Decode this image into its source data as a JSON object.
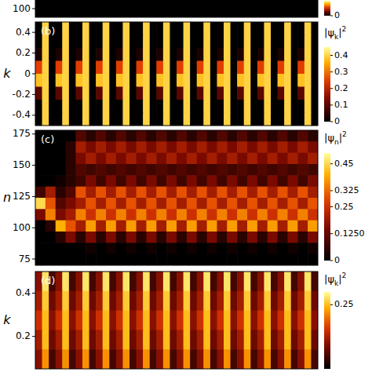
{
  "chart_data": [
    {
      "type": "heatmap",
      "ylim": [
        90,
        110
      ],
      "yticks": [
        100
      ],
      "tick_labels": "y",
      "cells": [
        [
          0
        ]
      ],
      "colorbar": {
        "lim": [
          0,
          0.1
        ],
        "ticks": [
          0
        ]
      }
    },
    {
      "type": "heatmap",
      "label": "(b)",
      "y_label": "k",
      "ylim": [
        -0.5,
        0.5
      ],
      "yticks": [
        -0.4,
        -0.2,
        0,
        0.2,
        0.4
      ],
      "tick_labels": "y",
      "cells": [
        [
          0,
          0.4,
          0,
          0,
          0.4,
          0,
          0,
          0.4,
          0,
          0,
          0.4,
          0,
          0,
          0.4,
          0,
          0,
          0.4,
          0,
          0,
          0.4,
          0,
          0,
          0.4,
          0,
          0,
          0.4,
          0,
          0,
          0.4,
          0,
          0,
          0.4,
          0,
          0,
          0.4,
          0,
          0,
          0.4,
          0,
          0,
          0.4,
          0
        ],
        [
          0,
          0.4,
          0,
          0,
          0.4,
          0,
          0,
          0.4,
          0,
          0,
          0.4,
          0,
          0,
          0.4,
          0,
          0,
          0.4,
          0,
          0,
          0.4,
          0,
          0,
          0.4,
          0,
          0,
          0.4,
          0,
          0,
          0.4,
          0,
          0,
          0.4,
          0,
          0,
          0.4,
          0,
          0,
          0.4,
          0,
          0,
          0.4,
          0
        ],
        [
          0.03,
          0.4,
          0,
          0.03,
          0.4,
          0,
          0.03,
          0.4,
          0,
          0.03,
          0.4,
          0,
          0.03,
          0.4,
          0,
          0.03,
          0.4,
          0,
          0.03,
          0.4,
          0,
          0.03,
          0.4,
          0,
          0.03,
          0.4,
          0,
          0.03,
          0.4,
          0,
          0.03,
          0.4,
          0,
          0.03,
          0.4,
          0,
          0.03,
          0.4,
          0,
          0.03,
          0.4,
          0
        ],
        [
          0.25,
          0.4,
          0,
          0.25,
          0.4,
          0,
          0.25,
          0.4,
          0,
          0.25,
          0.4,
          0,
          0.25,
          0.4,
          0,
          0.25,
          0.4,
          0,
          0.25,
          0.4,
          0,
          0.25,
          0.4,
          0,
          0.25,
          0.4,
          0,
          0.25,
          0.4,
          0,
          0.25,
          0.4,
          0,
          0.25,
          0.4,
          0,
          0.25,
          0.4,
          0,
          0.25,
          0.4,
          0
        ],
        [
          0.38,
          0.4,
          0,
          0.38,
          0.4,
          0,
          0.38,
          0.4,
          0,
          0.38,
          0.4,
          0,
          0.38,
          0.4,
          0,
          0.38,
          0.4,
          0,
          0.38,
          0.4,
          0,
          0.38,
          0.4,
          0,
          0.38,
          0.4,
          0,
          0.38,
          0.4,
          0,
          0.38,
          0.4,
          0,
          0.38,
          0.4,
          0,
          0.38,
          0.4,
          0,
          0.38,
          0.4,
          0
        ],
        [
          0.1,
          0.4,
          0,
          0.1,
          0.4,
          0,
          0.1,
          0.4,
          0,
          0.1,
          0.4,
          0,
          0.1,
          0.4,
          0,
          0.1,
          0.4,
          0,
          0.1,
          0.4,
          0,
          0.1,
          0.4,
          0,
          0.1,
          0.4,
          0,
          0.1,
          0.4,
          0,
          0.1,
          0.4,
          0,
          0.1,
          0.4,
          0,
          0.1,
          0.4,
          0,
          0.1,
          0.4,
          0
        ],
        [
          0,
          0.4,
          0,
          0,
          0.4,
          0,
          0,
          0.4,
          0,
          0,
          0.4,
          0,
          0,
          0.4,
          0,
          0,
          0.4,
          0,
          0,
          0.4,
          0,
          0,
          0.4,
          0,
          0,
          0.4,
          0,
          0,
          0.4,
          0,
          0,
          0.4,
          0,
          0,
          0.4,
          0,
          0,
          0.4,
          0,
          0,
          0.4,
          0
        ],
        [
          0,
          0.4,
          0,
          0,
          0.4,
          0,
          0,
          0.4,
          0,
          0,
          0.4,
          0,
          0,
          0.4,
          0,
          0,
          0.4,
          0,
          0,
          0.4,
          0,
          0,
          0.4,
          0,
          0,
          0.4,
          0,
          0,
          0.4,
          0,
          0,
          0.4,
          0,
          0,
          0.4,
          0,
          0,
          0.4,
          0,
          0,
          0.4,
          0
        ]
      ],
      "colorbar": {
        "title": {
          "text": "|ψ",
          "sub": "k",
          "after": "|",
          "sup": "2"
        },
        "lim": [
          0,
          0.45
        ],
        "ticks": [
          0,
          0.1,
          0.2,
          0.3,
          0.4
        ]
      }
    },
    {
      "type": "heatmap",
      "label": "(c)",
      "y_label": "n",
      "ylim": [
        70,
        178
      ],
      "yticks": [
        75,
        100,
        125,
        150,
        175
      ],
      "tick_labels": "y",
      "cells": [
        [
          0,
          0,
          0,
          0,
          0.1,
          0.05,
          0.1,
          0.05,
          0.1,
          0.05,
          0.1,
          0.05,
          0.1,
          0.05,
          0.1,
          0.05,
          0.1,
          0.05,
          0.1,
          0.05,
          0.1,
          0.05,
          0.1,
          0.05,
          0.1,
          0.05,
          0.1,
          0.05
        ],
        [
          0,
          0,
          0,
          0.05,
          0.2,
          0.15,
          0.2,
          0.15,
          0.2,
          0.15,
          0.2,
          0.15,
          0.2,
          0.15,
          0.2,
          0.15,
          0.2,
          0.15,
          0.2,
          0.15,
          0.2,
          0.15,
          0.2,
          0.15,
          0.2,
          0.15,
          0.2,
          0.15
        ],
        [
          0,
          0,
          0,
          0.05,
          0.15,
          0.2,
          0.15,
          0.2,
          0.15,
          0.2,
          0.15,
          0.2,
          0.15,
          0.2,
          0.15,
          0.2,
          0.15,
          0.2,
          0.15,
          0.2,
          0.15,
          0.2,
          0.15,
          0.2,
          0.15,
          0.2,
          0.15,
          0.2
        ],
        [
          0,
          0,
          0,
          0.05,
          0.1,
          0.08,
          0.1,
          0.08,
          0.1,
          0.08,
          0.1,
          0.08,
          0.1,
          0.08,
          0.1,
          0.08,
          0.1,
          0.08,
          0.1,
          0.08,
          0.1,
          0.08,
          0.1,
          0.08,
          0.1,
          0.08,
          0.1,
          0.08
        ],
        [
          0,
          0,
          0.02,
          0.05,
          0.08,
          0.15,
          0.08,
          0.15,
          0.08,
          0.15,
          0.08,
          0.15,
          0.08,
          0.15,
          0.08,
          0.15,
          0.08,
          0.15,
          0.08,
          0.15,
          0.08,
          0.15,
          0.08,
          0.15,
          0.08,
          0.15,
          0.08,
          0.15
        ],
        [
          0.08,
          0.2,
          0.05,
          0.1,
          0.3,
          0.2,
          0.3,
          0.2,
          0.3,
          0.2,
          0.3,
          0.2,
          0.3,
          0.2,
          0.3,
          0.2,
          0.3,
          0.2,
          0.3,
          0.2,
          0.3,
          0.2,
          0.3,
          0.2,
          0.3,
          0.2,
          0.3,
          0.2
        ],
        [
          0.45,
          0.3,
          0.1,
          0.15,
          0.2,
          0.3,
          0.2,
          0.3,
          0.2,
          0.3,
          0.2,
          0.3,
          0.2,
          0.3,
          0.2,
          0.3,
          0.2,
          0.3,
          0.2,
          0.3,
          0.2,
          0.3,
          0.2,
          0.3,
          0.2,
          0.3,
          0.2,
          0.3
        ],
        [
          0.15,
          0.35,
          0.15,
          0.2,
          0.35,
          0.25,
          0.35,
          0.25,
          0.35,
          0.25,
          0.35,
          0.25,
          0.35,
          0.25,
          0.35,
          0.25,
          0.35,
          0.25,
          0.35,
          0.25,
          0.35,
          0.25,
          0.35,
          0.25,
          0.35,
          0.25,
          0.35,
          0.25
        ],
        [
          0,
          0.05,
          0.4,
          0.3,
          0.2,
          0.38,
          0.2,
          0.38,
          0.2,
          0.38,
          0.2,
          0.38,
          0.2,
          0.38,
          0.2,
          0.38,
          0.2,
          0.38,
          0.2,
          0.38,
          0.2,
          0.38,
          0.2,
          0.38,
          0.2,
          0.38,
          0.2,
          0.38
        ],
        [
          0,
          0,
          0.05,
          0.15,
          0.05,
          0.15,
          0.05,
          0.15,
          0.05,
          0.15,
          0.05,
          0.15,
          0.05,
          0.15,
          0.05,
          0.15,
          0.05,
          0.15,
          0.05,
          0.15,
          0.05,
          0.15,
          0.05,
          0.15,
          0.05,
          0.15,
          0.05,
          0.15
        ],
        [
          0,
          0,
          0,
          0,
          0,
          0.02,
          0,
          0.02,
          0,
          0.02,
          0,
          0.02,
          0,
          0.02,
          0,
          0.02,
          0,
          0.02,
          0,
          0.02,
          0,
          0.02,
          0,
          0.02,
          0,
          0.02,
          0,
          0.02
        ],
        [
          0,
          0,
          0,
          0,
          0,
          0,
          0,
          0,
          0,
          0,
          0,
          0,
          0,
          0,
          0,
          0,
          0,
          0,
          0,
          0,
          0,
          0,
          0,
          0,
          0,
          0,
          0,
          0
        ]
      ],
      "colorbar": {
        "title": {
          "text": "|ψ",
          "sub": "n",
          "after": "|",
          "sup": "2"
        },
        "lim": [
          0,
          0.5
        ],
        "ticks": [
          0,
          {
            "value": 0.125,
            "label": "0.1250"
          },
          0.25,
          0.325,
          0.45
        ]
      }
    },
    {
      "type": "heatmap",
      "label": "(d)",
      "y_label": "k",
      "ylim": [
        0.05,
        0.5
      ],
      "yticks": [
        0.2,
        0.4
      ],
      "tick_labels": "y",
      "cells": [
        [
          0.1,
          0.28,
          0.05,
          0.1,
          0.28,
          0.05,
          0.1,
          0.28,
          0.05,
          0.1,
          0.28,
          0.05,
          0.1,
          0.28,
          0.05,
          0.1,
          0.28,
          0.05,
          0.1,
          0.28,
          0.05,
          0.1,
          0.28,
          0.05,
          0.1,
          0.28,
          0.05,
          0.1,
          0.28,
          0.05,
          0.1,
          0.28,
          0.05,
          0.1,
          0.28,
          0.05,
          0.1,
          0.28,
          0.05,
          0.1,
          0.28,
          0.05
        ],
        [
          0.12,
          0.26,
          0.08,
          0.12,
          0.26,
          0.08,
          0.12,
          0.26,
          0.08,
          0.12,
          0.26,
          0.08,
          0.12,
          0.26,
          0.08,
          0.12,
          0.26,
          0.08,
          0.12,
          0.26,
          0.08,
          0.12,
          0.26,
          0.08,
          0.12,
          0.26,
          0.08,
          0.12,
          0.26,
          0.08,
          0.12,
          0.26,
          0.08,
          0.12,
          0.26,
          0.08,
          0.12,
          0.26,
          0.08,
          0.12,
          0.26,
          0.08
        ],
        [
          0.15,
          0.25,
          0.1,
          0.15,
          0.25,
          0.1,
          0.15,
          0.25,
          0.1,
          0.15,
          0.25,
          0.1,
          0.15,
          0.25,
          0.1,
          0.15,
          0.25,
          0.1,
          0.15,
          0.25,
          0.1,
          0.15,
          0.25,
          0.1,
          0.15,
          0.25,
          0.1,
          0.15,
          0.25,
          0.1,
          0.15,
          0.25,
          0.1,
          0.15,
          0.25,
          0.1,
          0.15,
          0.25,
          0.1,
          0.15,
          0.25,
          0.1
        ],
        [
          0.12,
          0.25,
          0.08,
          0.12,
          0.25,
          0.08,
          0.12,
          0.25,
          0.08,
          0.12,
          0.25,
          0.08,
          0.12,
          0.25,
          0.08,
          0.12,
          0.25,
          0.08,
          0.12,
          0.25,
          0.08,
          0.12,
          0.25,
          0.08,
          0.12,
          0.25,
          0.08,
          0.12,
          0.25,
          0.08,
          0.12,
          0.25,
          0.08,
          0.12,
          0.25,
          0.08,
          0.12,
          0.25,
          0.08,
          0.12,
          0.25,
          0.08
        ],
        [
          0.1,
          0.22,
          0.05,
          0.1,
          0.22,
          0.05,
          0.1,
          0.22,
          0.05,
          0.1,
          0.22,
          0.05,
          0.1,
          0.22,
          0.05,
          0.1,
          0.22,
          0.05,
          0.1,
          0.22,
          0.05,
          0.1,
          0.22,
          0.05,
          0.1,
          0.22,
          0.05,
          0.1,
          0.22,
          0.05,
          0.1,
          0.22,
          0.05,
          0.1,
          0.22,
          0.05,
          0.1,
          0.22,
          0.05,
          0.1,
          0.22,
          0.05
        ]
      ],
      "colorbar": {
        "title": {
          "text": "|ψ",
          "sub": "k",
          "after": "|",
          "sup": "2"
        },
        "lim": [
          0,
          0.3
        ],
        "ticks": [
          0.25
        ]
      }
    }
  ]
}
